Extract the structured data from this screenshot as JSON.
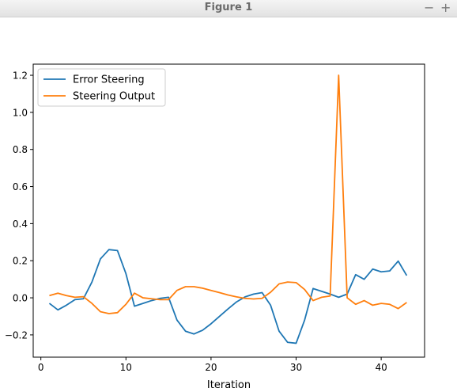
{
  "window": {
    "title": "Figure 1",
    "minimize_glyph": "−",
    "maximize_glyph": "+"
  },
  "chart_data": {
    "type": "line",
    "title": "",
    "xlabel": "Iteration",
    "ylabel": "",
    "xlim": [
      -0.9,
      45.1
    ],
    "ylim": [
      -0.32,
      1.26
    ],
    "xticks": [
      0,
      10,
      20,
      30,
      40
    ],
    "yticks": [
      -0.2,
      0.0,
      0.2,
      0.4,
      0.6,
      0.8,
      1.0,
      1.2
    ],
    "ytick_labels": [
      "−0.2",
      "0.0",
      "0.2",
      "0.4",
      "0.6",
      "0.8",
      "1.0",
      "1.2"
    ],
    "grid": false,
    "legend_position": "upper left",
    "x": [
      1,
      2,
      3,
      4,
      5,
      6,
      7,
      8,
      9,
      10,
      11,
      12,
      13,
      14,
      15,
      16,
      17,
      18,
      19,
      20,
      21,
      22,
      23,
      24,
      25,
      26,
      27,
      28,
      29,
      30,
      31,
      32,
      33,
      34,
      35,
      36,
      37,
      38,
      39,
      40,
      41,
      42,
      43
    ],
    "series": [
      {
        "name": "Error Steering",
        "color": "#1f77b4",
        "values": [
          -0.03,
          -0.065,
          -0.04,
          -0.01,
          -0.005,
          0.085,
          0.21,
          0.26,
          0.255,
          0.13,
          -0.045,
          -0.03,
          -0.015,
          -0.003,
          0.003,
          -0.12,
          -0.18,
          -0.195,
          -0.175,
          -0.14,
          -0.1,
          -0.06,
          -0.022,
          0.005,
          0.02,
          0.028,
          -0.04,
          -0.18,
          -0.24,
          -0.245,
          -0.12,
          0.05,
          0.035,
          0.02,
          0.003,
          0.02,
          0.125,
          0.1,
          0.155,
          0.14,
          0.145,
          0.198,
          0.12
        ]
      },
      {
        "name": "Steering Output",
        "color": "#ff7f0e",
        "values": [
          0.012,
          0.025,
          0.012,
          0.003,
          0.006,
          -0.03,
          -0.075,
          -0.085,
          -0.08,
          -0.035,
          0.025,
          0.0,
          -0.005,
          -0.01,
          -0.01,
          0.04,
          0.06,
          0.06,
          0.052,
          0.04,
          0.028,
          0.015,
          0.005,
          -0.003,
          -0.006,
          -0.003,
          0.03,
          0.075,
          0.085,
          0.082,
          0.045,
          -0.015,
          0.003,
          0.01,
          1.2,
          0.0,
          -0.035,
          -0.015,
          -0.04,
          -0.03,
          -0.035,
          -0.058,
          -0.025
        ]
      }
    ]
  }
}
